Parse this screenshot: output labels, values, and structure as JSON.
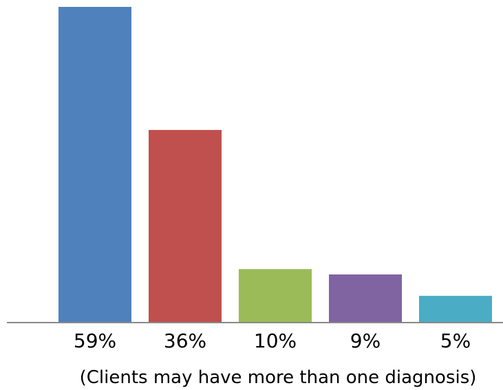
{
  "chart_data": {
    "type": "bar",
    "categories": [
      "59%",
      "36%",
      "10%",
      "9%",
      "5%"
    ],
    "values": [
      59,
      36,
      10,
      9,
      5
    ],
    "colors": [
      "#4F81BD",
      "#C0504D",
      "#9BBB59",
      "#8064A2",
      "#4BACC6"
    ],
    "ylim": [
      0,
      59
    ],
    "grid": false,
    "legend": "none",
    "title": "",
    "xlabel": "",
    "ylabel": "",
    "annotation": "(Clients may have more than one diagnosis)"
  }
}
